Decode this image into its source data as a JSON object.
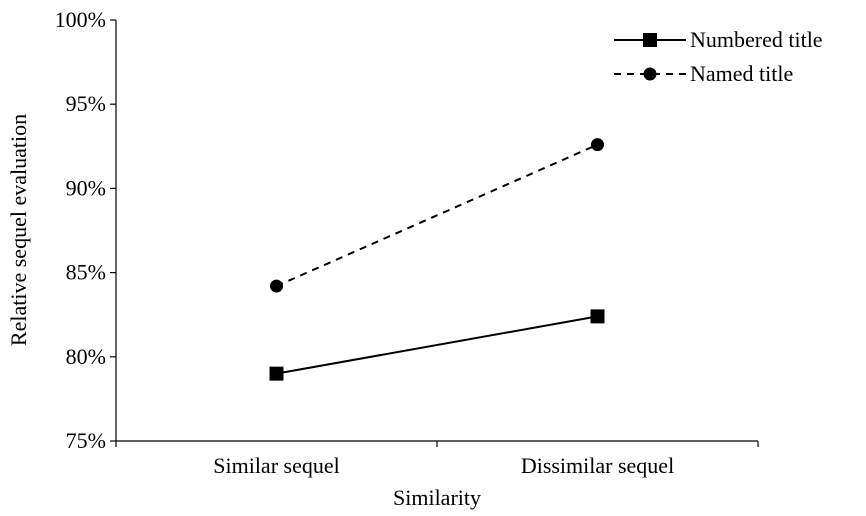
{
  "chart_data": {
    "type": "line",
    "categories": [
      "Similar sequel",
      "Dissimilar sequel"
    ],
    "series": [
      {
        "name": "Numbered title",
        "values": [
          79.0,
          82.4
        ],
        "line_style": "solid",
        "marker": "square",
        "color": "#000000"
      },
      {
        "name": "Named title",
        "values": [
          84.2,
          92.6
        ],
        "line_style": "dashed",
        "marker": "circle",
        "color": "#000000"
      }
    ],
    "xlabel": "Similarity",
    "ylabel": "Relative sequel evaluation",
    "ylim": [
      75,
      100
    ],
    "yticks": [
      75,
      80,
      85,
      90,
      95,
      100
    ],
    "ytick_labels": [
      "75%",
      "80%",
      "85%",
      "90%",
      "95%",
      "100%"
    ],
    "grid": false,
    "legend_position": "top-right"
  }
}
